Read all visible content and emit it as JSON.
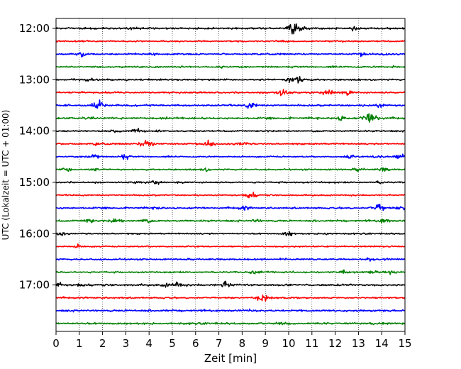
{
  "chart_data": {
    "type": "line",
    "title": "",
    "xlabel": "Zeit  [min]",
    "ylabel": "UTC (Lokalzeit = UTC + 01:00)",
    "xlim": [
      0,
      15
    ],
    "x_ticks": [
      0,
      1,
      2,
      3,
      4,
      5,
      6,
      7,
      8,
      9,
      10,
      11,
      12,
      13,
      14,
      15
    ],
    "y_tick_labels": [
      "12:00",
      "13:00",
      "14:00",
      "15:00",
      "16:00",
      "17:00"
    ],
    "grid": "vertical dotted lines at each minute",
    "legend": "none",
    "trace_interval_minutes": 15,
    "color_cycle": [
      "#000000",
      "#ff0000",
      "#0000ff",
      "#008000"
    ],
    "traces": [
      {
        "start": "12:00",
        "color": "#000000",
        "events": [
          {
            "t": 10.2,
            "amp": 1.0
          },
          {
            "t": 10.4,
            "amp": 0.8
          },
          {
            "t": 12.8,
            "amp": 0.35
          },
          {
            "t": 3.2,
            "amp": 0.25
          }
        ]
      },
      {
        "start": "12:15",
        "color": "#ff0000",
        "events": [
          {
            "t": 0.2,
            "amp": 0.15
          }
        ]
      },
      {
        "start": "12:30",
        "color": "#0000ff",
        "events": [
          {
            "t": 1.1,
            "amp": 0.45
          },
          {
            "t": 4.2,
            "amp": 0.3
          },
          {
            "t": 13.2,
            "amp": 0.35
          },
          {
            "t": 14.1,
            "amp": 0.3
          }
        ]
      },
      {
        "start": "12:45",
        "color": "#008000",
        "events": [
          {
            "t": 7.2,
            "amp": 0.3
          },
          {
            "t": 14.5,
            "amp": 0.2
          }
        ]
      },
      {
        "start": "13:00",
        "color": "#000000",
        "events": [
          {
            "t": 10.4,
            "amp": 1.0
          },
          {
            "t": 10.1,
            "amp": 0.5
          },
          {
            "t": 1.5,
            "amp": 0.2
          }
        ]
      },
      {
        "start": "13:15",
        "color": "#ff0000",
        "events": [
          {
            "t": 9.7,
            "amp": 0.9
          },
          {
            "t": 11.6,
            "amp": 0.5
          },
          {
            "t": 11.9,
            "amp": 0.45
          },
          {
            "t": 12.6,
            "amp": 0.4
          }
        ]
      },
      {
        "start": "13:30",
        "color": "#0000ff",
        "events": [
          {
            "t": 1.8,
            "amp": 0.9
          },
          {
            "t": 8.4,
            "amp": 0.7
          },
          {
            "t": 13.9,
            "amp": 0.4
          }
        ]
      },
      {
        "start": "13:45",
        "color": "#008000",
        "events": [
          {
            "t": 12.3,
            "amp": 0.6
          },
          {
            "t": 13.6,
            "amp": 1.0
          },
          {
            "t": 13.4,
            "amp": 0.6
          }
        ]
      },
      {
        "start": "14:00",
        "color": "#000000",
        "events": [
          {
            "t": 3.5,
            "amp": 0.55
          },
          {
            "t": 2.5,
            "amp": 0.25
          },
          {
            "t": 4.4,
            "amp": 0.25
          }
        ]
      },
      {
        "start": "14:15",
        "color": "#ff0000",
        "events": [
          {
            "t": 3.9,
            "amp": 1.0
          },
          {
            "t": 6.6,
            "amp": 0.75
          },
          {
            "t": 8.0,
            "amp": 0.5
          },
          {
            "t": 1.8,
            "amp": 0.3
          }
        ]
      },
      {
        "start": "14:30",
        "color": "#0000ff",
        "events": [
          {
            "t": 1.6,
            "amp": 0.7
          },
          {
            "t": 2.9,
            "amp": 0.6
          },
          {
            "t": 12.6,
            "amp": 0.5
          },
          {
            "t": 13.9,
            "amp": 0.6
          },
          {
            "t": 14.8,
            "amp": 0.7
          }
        ]
      },
      {
        "start": "14:45",
        "color": "#008000",
        "events": [
          {
            "t": 0.5,
            "amp": 0.5
          },
          {
            "t": 1.6,
            "amp": 0.35
          },
          {
            "t": 6.4,
            "amp": 0.4
          },
          {
            "t": 13.0,
            "amp": 0.35
          },
          {
            "t": 14.1,
            "amp": 0.5
          }
        ]
      },
      {
        "start": "15:00",
        "color": "#000000",
        "events": [
          {
            "t": 4.3,
            "amp": 0.5
          },
          {
            "t": 3.5,
            "amp": 0.2
          },
          {
            "t": 13.9,
            "amp": 0.25
          }
        ]
      },
      {
        "start": "15:15",
        "color": "#ff0000",
        "events": [
          {
            "t": 8.4,
            "amp": 0.6
          },
          {
            "t": 8.2,
            "amp": 0.4
          }
        ]
      },
      {
        "start": "15:30",
        "color": "#0000ff",
        "events": [
          {
            "t": 8.1,
            "amp": 0.5
          },
          {
            "t": 13.9,
            "amp": 0.9
          },
          {
            "t": 14.9,
            "amp": 0.6
          },
          {
            "t": 4.4,
            "amp": 0.3
          }
        ]
      },
      {
        "start": "15:45",
        "color": "#008000",
        "events": [
          {
            "t": 1.4,
            "amp": 0.5
          },
          {
            "t": 2.6,
            "amp": 0.6
          },
          {
            "t": 3.8,
            "amp": 0.5
          },
          {
            "t": 8.6,
            "amp": 0.4
          },
          {
            "t": 14.1,
            "amp": 0.55
          }
        ]
      },
      {
        "start": "16:00",
        "color": "#000000",
        "events": [
          {
            "t": 10.0,
            "amp": 0.6
          },
          {
            "t": 0.2,
            "amp": 0.4
          },
          {
            "t": 11.7,
            "amp": 0.3
          }
        ]
      },
      {
        "start": "16:15",
        "color": "#ff0000",
        "events": [
          {
            "t": 1.0,
            "amp": 0.4
          }
        ]
      },
      {
        "start": "16:30",
        "color": "#0000ff",
        "events": [
          {
            "t": 13.5,
            "amp": 0.35
          }
        ]
      },
      {
        "start": "16:45",
        "color": "#008000",
        "events": [
          {
            "t": 8.6,
            "amp": 0.45
          },
          {
            "t": 12.4,
            "amp": 0.4
          },
          {
            "t": 13.6,
            "amp": 0.5
          },
          {
            "t": 14.4,
            "amp": 0.55
          }
        ]
      },
      {
        "start": "17:00",
        "color": "#000000",
        "events": [
          {
            "t": 0.1,
            "amp": 0.5
          },
          {
            "t": 1.0,
            "amp": 0.45
          },
          {
            "t": 5.2,
            "amp": 0.6
          },
          {
            "t": 7.3,
            "amp": 0.7
          },
          {
            "t": 4.7,
            "amp": 0.3
          }
        ]
      },
      {
        "start": "17:15",
        "color": "#ff0000",
        "events": [
          {
            "t": 8.9,
            "amp": 1.0
          }
        ]
      },
      {
        "start": "17:30",
        "color": "#0000ff",
        "events": [
          {
            "t": 8.5,
            "amp": 0.2
          }
        ]
      },
      {
        "start": "17:45",
        "color": "#008000",
        "events": [
          {
            "t": 9.7,
            "amp": 0.15
          }
        ]
      }
    ]
  }
}
